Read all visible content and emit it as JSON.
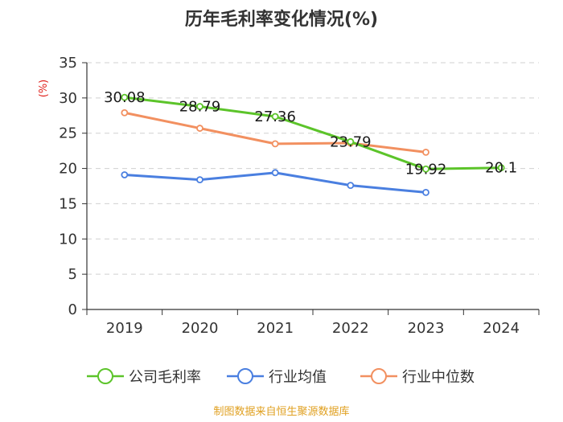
{
  "chart_data": {
    "type": "line",
    "title": "历年毛利率变化情况(%)",
    "ylabel": "(%)",
    "xlabel": "",
    "categories": [
      "2019",
      "2020",
      "2021",
      "2022",
      "2023",
      "2024"
    ],
    "ylim": [
      0,
      35
    ],
    "yticks": [
      0,
      5,
      10,
      15,
      20,
      25,
      30,
      35
    ],
    "grid": true,
    "legend_position": "bottom",
    "series": [
      {
        "name": "公司毛利率",
        "color": "#5cc42a",
        "values": [
          30.08,
          28.79,
          27.36,
          23.79,
          19.92,
          20.1
        ],
        "labels": [
          "30.08",
          "28.79",
          "27.36",
          "23.79",
          "19.92",
          "20.1"
        ]
      },
      {
        "name": "行业均值",
        "color": "#4a7fe0",
        "values": [
          19.1,
          18.4,
          19.4,
          17.6,
          16.6,
          null
        ]
      },
      {
        "name": "行业中位数",
        "color": "#f29060",
        "values": [
          27.9,
          25.7,
          23.5,
          23.6,
          22.3,
          null
        ]
      }
    ]
  },
  "source": "制图数据来自恒生聚源数据库"
}
